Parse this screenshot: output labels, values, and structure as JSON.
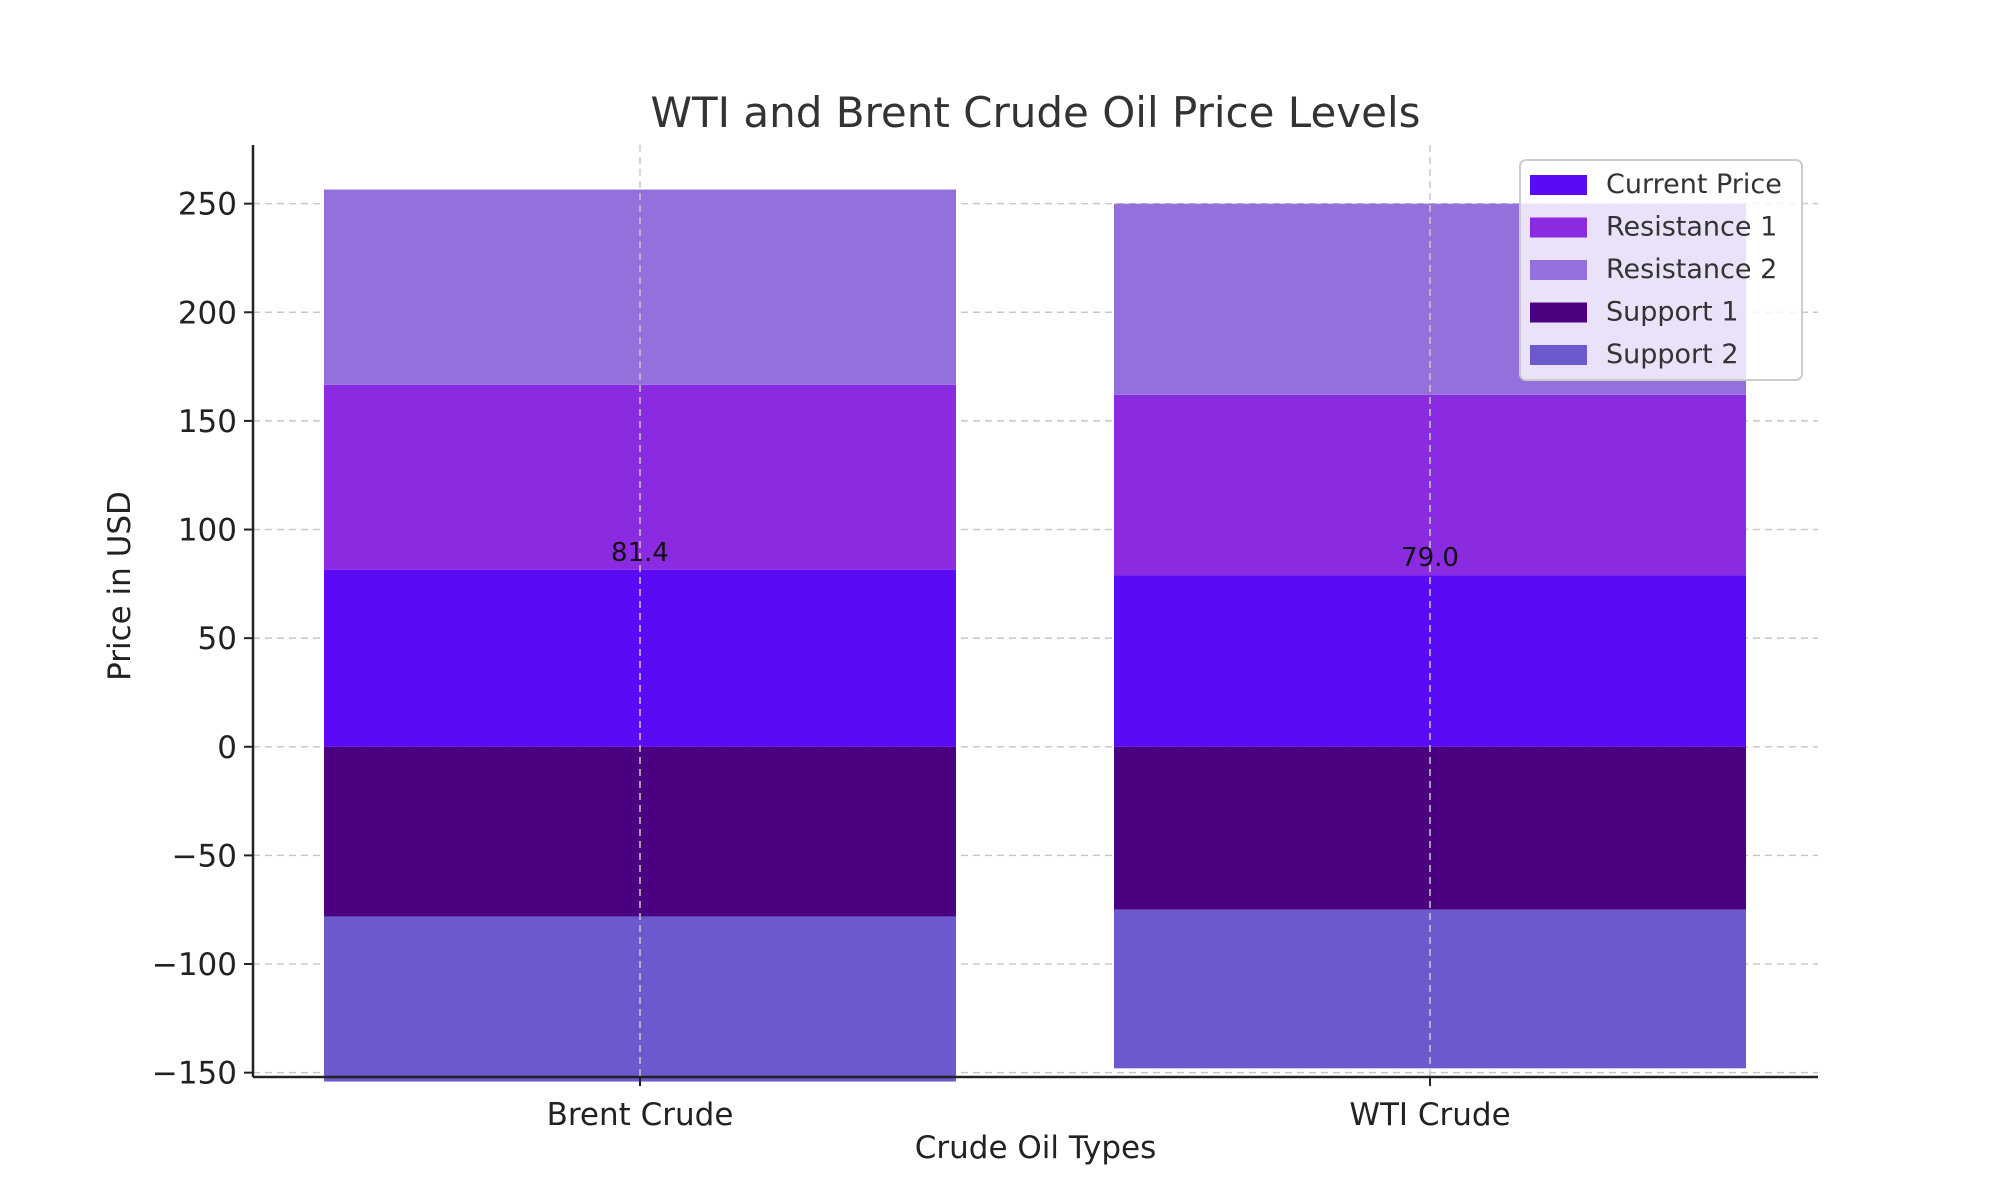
{
  "chart_data": {
    "type": "bar",
    "stacked": true,
    "title": "WTI and Brent Crude Oil Price Levels",
    "xlabel": "Crude Oil Types",
    "ylabel": "Price in USD",
    "categories": [
      "Brent Crude",
      "WTI Crude"
    ],
    "ylim": [
      -152,
      277
    ],
    "yticks": [
      250,
      200,
      150,
      100,
      50,
      0,
      -50,
      -100,
      -150
    ],
    "ytick_labels": [
      "250",
      "200",
      "150",
      "100",
      "50",
      "0",
      "−50",
      "−100",
      "−150"
    ],
    "grid": true,
    "legend_position": "top-right",
    "series": [
      {
        "name": "Current Price",
        "color": "#5a0af5",
        "values": [
          81.4,
          79.0
        ],
        "base": [
          0,
          0
        ]
      },
      {
        "name": "Resistance 1",
        "color": "#8a2be2",
        "values": [
          85.2,
          83.0
        ],
        "base": [
          81.4,
          79.0
        ]
      },
      {
        "name": "Resistance 2",
        "color": "#9370db",
        "values": [
          89.9,
          88.0
        ],
        "base": [
          166.6,
          162.0
        ]
      },
      {
        "name": "Support 1",
        "color": "#4b0082",
        "values": [
          -78.1,
          -75.0
        ],
        "base": [
          0,
          0
        ]
      },
      {
        "name": "Support 2",
        "color": "#6a5acd",
        "values": [
          -76.0,
          -73.0
        ],
        "base": [
          -78.1,
          -75.0
        ]
      }
    ],
    "data_labels": [
      "81.4",
      "79.0"
    ]
  }
}
